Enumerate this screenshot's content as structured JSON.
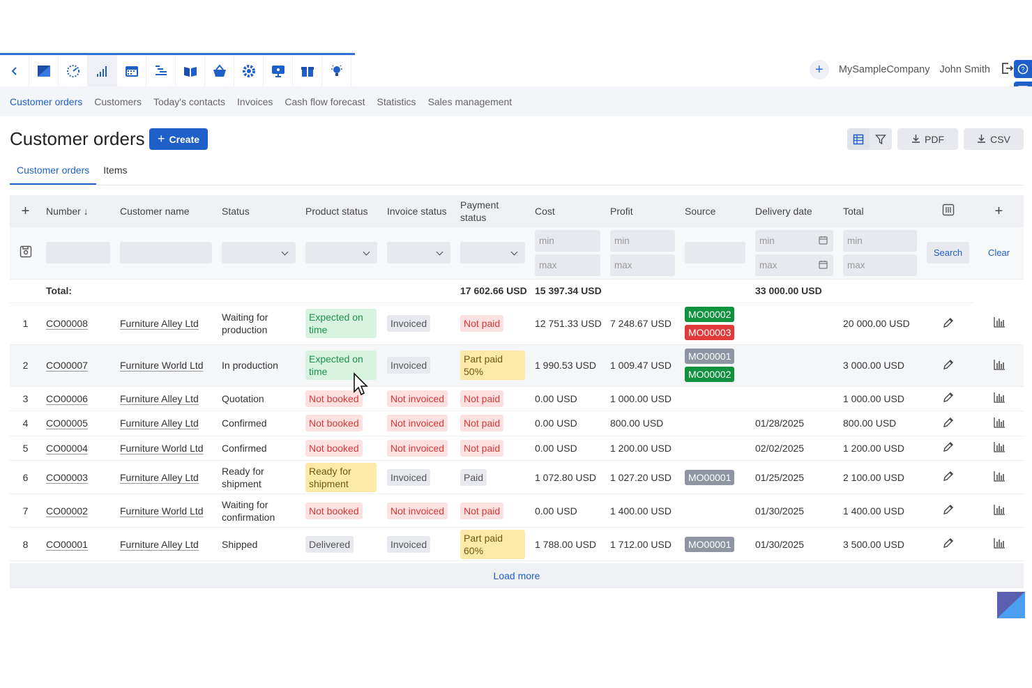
{
  "header": {
    "company": "MySampleCompany",
    "user": "John Smith",
    "app_icons": [
      "back-chevron-icon",
      "app-logo-icon",
      "dashboard-gauge-icon",
      "signal-bars-icon",
      "calendar-icon",
      "gantt-icon",
      "book-icon",
      "basket-icon",
      "gear-icon",
      "presentation-icon",
      "gift-icon",
      "lightbulb-icon"
    ]
  },
  "nav": {
    "tabs": [
      "Customer orders",
      "Customers",
      "Today's contacts",
      "Invoices",
      "Cash flow forecast",
      "Statistics",
      "Sales management"
    ]
  },
  "page": {
    "title": "Customer orders",
    "create_label": "Create",
    "pdf_label": "PDF",
    "csv_label": "CSV",
    "subtabs": [
      "Customer orders",
      "Items"
    ]
  },
  "table": {
    "columns": [
      "Number",
      "Customer name",
      "Status",
      "Product status",
      "Invoice status",
      "Payment status",
      "Cost",
      "Profit",
      "Source",
      "Delivery date",
      "Total"
    ],
    "filters": {
      "min": "min",
      "max": "max",
      "search": "Search",
      "clear": "Clear"
    },
    "totals": {
      "label": "Total:",
      "cost": "17 602.66 USD",
      "profit": "15 397.34 USD",
      "total": "33 000.00 USD"
    },
    "rows": [
      {
        "idx": "1",
        "number": "CO00008",
        "customer": "Furniture Alley Ltd",
        "status": "Waiting for production",
        "product": "Expected on time",
        "product_color": "green",
        "invoice": "Invoiced",
        "invoice_color": "grey",
        "payment": "Not paid",
        "payment_color": "red",
        "cost": "12 751.33 USD",
        "profit": "7 248.67 USD",
        "source": [
          {
            "t": "MO00002",
            "c": "green"
          },
          {
            "t": "MO00003",
            "c": "red"
          }
        ],
        "delivery": "",
        "total": "20 000.00 USD"
      },
      {
        "idx": "2",
        "number": "CO00007",
        "customer": "Furniture World Ltd",
        "status": "In production",
        "product": "Expected on time",
        "product_color": "green",
        "invoice": "Invoiced",
        "invoice_color": "grey",
        "payment": "Part paid 50%",
        "payment_color": "yellow",
        "cost": "1 990.53 USD",
        "profit": "1 009.47 USD",
        "source": [
          {
            "t": "MO00001",
            "c": "grey"
          },
          {
            "t": "MO00002",
            "c": "green"
          }
        ],
        "delivery": "",
        "total": "3 000.00 USD"
      },
      {
        "idx": "3",
        "number": "CO00006",
        "customer": "Furniture Alley Ltd",
        "status": "Quotation",
        "product": "Not booked",
        "product_color": "red",
        "invoice": "Not invoiced",
        "invoice_color": "red",
        "payment": "Not paid",
        "payment_color": "red",
        "cost": "0.00 USD",
        "profit": "1 000.00 USD",
        "source": [],
        "delivery": "",
        "total": "1 000.00 USD"
      },
      {
        "idx": "4",
        "number": "CO00005",
        "customer": "Furniture Alley Ltd",
        "status": "Confirmed",
        "product": "Not booked",
        "product_color": "red",
        "invoice": "Not invoiced",
        "invoice_color": "red",
        "payment": "Not paid",
        "payment_color": "red",
        "cost": "0.00 USD",
        "profit": "800.00 USD",
        "source": [],
        "delivery": "01/28/2025",
        "total": "800.00 USD"
      },
      {
        "idx": "5",
        "number": "CO00004",
        "customer": "Furniture World Ltd",
        "status": "Confirmed",
        "product": "Not booked",
        "product_color": "red",
        "invoice": "Not invoiced",
        "invoice_color": "red",
        "payment": "Not paid",
        "payment_color": "red",
        "cost": "0.00 USD",
        "profit": "1 200.00 USD",
        "source": [],
        "delivery": "02/02/2025",
        "total": "1 200.00 USD"
      },
      {
        "idx": "6",
        "number": "CO00003",
        "customer": "Furniture Alley Ltd",
        "status": "Ready for shipment",
        "product": "Ready for shipment",
        "product_color": "yellow",
        "invoice": "Invoiced",
        "invoice_color": "grey",
        "payment": "Paid",
        "payment_color": "grey",
        "cost": "1 072.80 USD",
        "profit": "1 027.20 USD",
        "source": [
          {
            "t": "MO00001",
            "c": "grey"
          }
        ],
        "delivery": "01/25/2025",
        "total": "2 100.00 USD"
      },
      {
        "idx": "7",
        "number": "CO00002",
        "customer": "Furniture World Ltd",
        "status": "Waiting for confirmation",
        "product": "Not booked",
        "product_color": "red",
        "invoice": "Not invoiced",
        "invoice_color": "red",
        "payment": "Not paid",
        "payment_color": "red",
        "cost": "0.00 USD",
        "profit": "1 400.00 USD",
        "source": [],
        "delivery": "01/30/2025",
        "total": "1 400.00 USD"
      },
      {
        "idx": "8",
        "number": "CO00001",
        "customer": "Furniture Alley Ltd",
        "status": "Shipped",
        "product": "Delivered",
        "product_color": "grey",
        "invoice": "Invoiced",
        "invoice_color": "grey",
        "payment": "Part paid 60%",
        "payment_color": "yellow",
        "cost": "1 788.00 USD",
        "profit": "1 712.00 USD",
        "source": [
          {
            "t": "MO00001",
            "c": "grey"
          }
        ],
        "delivery": "01/30/2025",
        "total": "3 500.00 USD"
      }
    ],
    "load_more": "Load more"
  },
  "colors": {
    "accent": "#1e5fc9",
    "green": "#10913d",
    "red": "#e23a3a",
    "grey": "#8f95a3"
  }
}
